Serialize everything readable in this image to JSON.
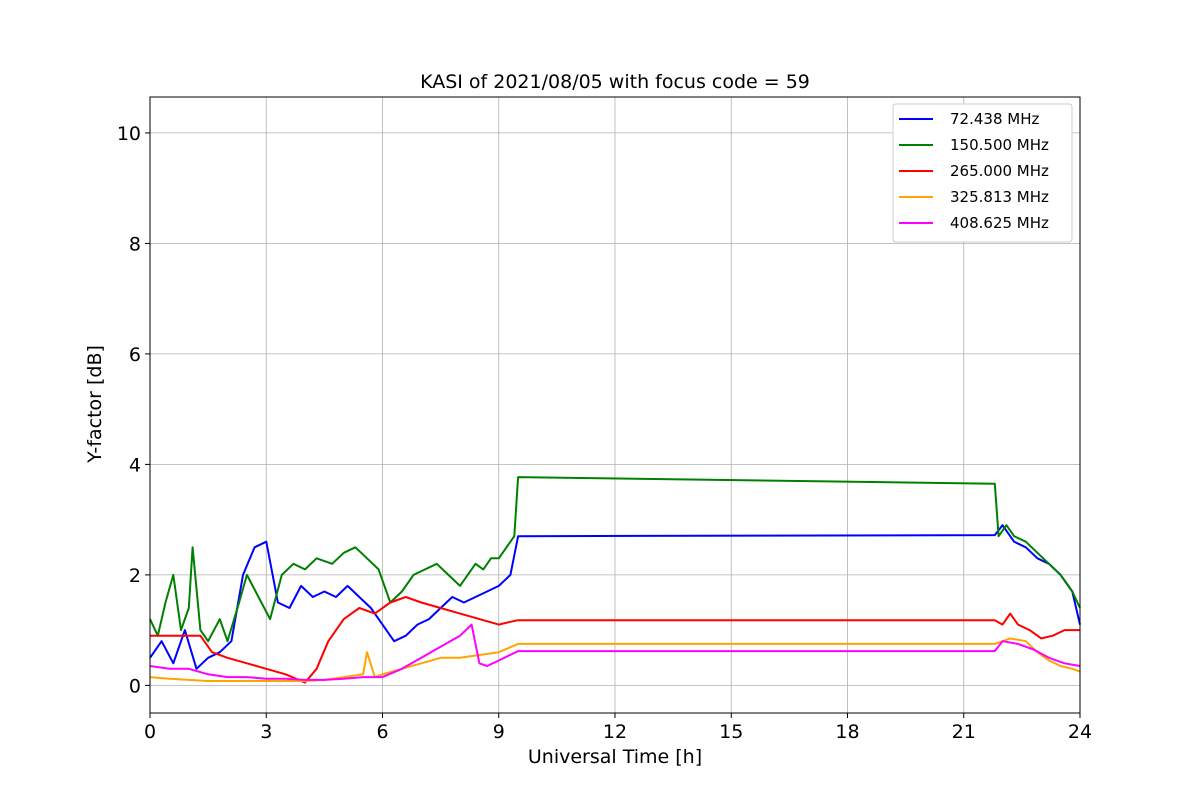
{
  "chart_data": {
    "type": "line",
    "title": "KASI of 2021/08/05 with focus code = 59",
    "xlabel": "Universal Time [h]",
    "ylabel": "Y-factor [dB]",
    "xlim": [
      0,
      24
    ],
    "ylim": [
      -0.5,
      10.65
    ],
    "xticks": [
      0,
      3,
      6,
      9,
      12,
      15,
      18,
      21,
      24
    ],
    "xtick_labels": [
      "0",
      "3",
      "6",
      "9",
      "12",
      "15",
      "18",
      "21",
      "24"
    ],
    "yticks": [
      0,
      2,
      4,
      6,
      8,
      10
    ],
    "ytick_labels": [
      "0",
      "2",
      "4",
      "6",
      "8",
      "10"
    ],
    "grid": true,
    "legend_position": "top-right",
    "series": [
      {
        "name": "72.438 MHz",
        "color": "#0000ff",
        "x": [
          0,
          0.3,
          0.6,
          0.9,
          1.2,
          1.5,
          1.8,
          2.1,
          2.4,
          2.7,
          3.0,
          3.3,
          3.6,
          3.9,
          4.2,
          4.5,
          4.8,
          5.1,
          5.4,
          5.7,
          6.0,
          6.3,
          6.6,
          6.9,
          7.2,
          7.5,
          7.8,
          8.1,
          8.4,
          8.7,
          9.0,
          9.3,
          9.5,
          21.8,
          22.0,
          22.3,
          22.6,
          22.9,
          23.2,
          23.5,
          23.8,
          24.0
        ],
        "y": [
          0.5,
          0.8,
          0.4,
          1.0,
          0.3,
          0.5,
          0.6,
          0.8,
          2.0,
          2.5,
          2.6,
          1.5,
          1.4,
          1.8,
          1.6,
          1.7,
          1.6,
          1.8,
          1.6,
          1.4,
          1.1,
          0.8,
          0.9,
          1.1,
          1.2,
          1.4,
          1.6,
          1.5,
          1.6,
          1.7,
          1.8,
          2.0,
          2.7,
          2.72,
          2.9,
          2.6,
          2.5,
          2.3,
          2.2,
          2.0,
          1.7,
          1.1
        ]
      },
      {
        "name": "150.500 MHz",
        "color": "#008000",
        "x": [
          0,
          0.2,
          0.4,
          0.6,
          0.8,
          1.0,
          1.1,
          1.3,
          1.5,
          1.8,
          2.0,
          2.3,
          2.5,
          2.8,
          3.1,
          3.4,
          3.7,
          4.0,
          4.3,
          4.7,
          5.0,
          5.3,
          5.6,
          5.9,
          6.2,
          6.5,
          6.8,
          7.1,
          7.4,
          7.7,
          8.0,
          8.2,
          8.4,
          8.6,
          8.8,
          9.0,
          9.2,
          9.4,
          9.5,
          21.8,
          21.9,
          22.1,
          22.3,
          22.6,
          22.9,
          23.2,
          23.5,
          23.8,
          24.0
        ],
        "y": [
          1.2,
          0.9,
          1.5,
          2.0,
          1.0,
          1.4,
          2.5,
          1.0,
          0.8,
          1.2,
          0.8,
          1.5,
          2.0,
          1.6,
          1.2,
          2.0,
          2.2,
          2.1,
          2.3,
          2.2,
          2.4,
          2.5,
          2.3,
          2.1,
          1.5,
          1.7,
          2.0,
          2.1,
          2.2,
          2.0,
          1.8,
          2.0,
          2.2,
          2.1,
          2.3,
          2.3,
          2.5,
          2.7,
          3.77,
          3.65,
          2.7,
          2.9,
          2.7,
          2.6,
          2.4,
          2.2,
          2.0,
          1.7,
          1.4
        ]
      },
      {
        "name": "265.000 MHz",
        "color": "#ff0000",
        "x": [
          0,
          0.5,
          1.0,
          1.3,
          1.6,
          2.0,
          2.5,
          3.0,
          3.5,
          4.0,
          4.3,
          4.6,
          5.0,
          5.4,
          5.8,
          6.2,
          6.6,
          7.0,
          7.5,
          8.0,
          8.5,
          9.0,
          9.3,
          9.5,
          21.8,
          22.0,
          22.2,
          22.4,
          22.7,
          23.0,
          23.3,
          23.6,
          24.0
        ],
        "y": [
          0.9,
          0.9,
          0.9,
          0.9,
          0.6,
          0.5,
          0.4,
          0.3,
          0.2,
          0.05,
          0.3,
          0.8,
          1.2,
          1.4,
          1.3,
          1.5,
          1.6,
          1.5,
          1.4,
          1.3,
          1.2,
          1.1,
          1.15,
          1.18,
          1.18,
          1.1,
          1.3,
          1.1,
          1.0,
          0.85,
          0.9,
          1.0,
          1.0
        ]
      },
      {
        "name": "325.813 MHz",
        "color": "#ffa500",
        "x": [
          0,
          0.5,
          1.0,
          1.5,
          2.0,
          2.5,
          3.0,
          3.5,
          4.0,
          4.5,
          5.0,
          5.5,
          5.6,
          5.8,
          6.0,
          6.5,
          7.0,
          7.5,
          8.0,
          8.5,
          9.0,
          9.5,
          21.8,
          22.2,
          22.6,
          22.9,
          23.2,
          23.5,
          23.8,
          24.0
        ],
        "y": [
          0.15,
          0.12,
          0.1,
          0.08,
          0.08,
          0.08,
          0.08,
          0.08,
          0.08,
          0.1,
          0.15,
          0.2,
          0.6,
          0.15,
          0.2,
          0.3,
          0.4,
          0.5,
          0.5,
          0.55,
          0.6,
          0.75,
          0.75,
          0.85,
          0.8,
          0.6,
          0.45,
          0.35,
          0.3,
          0.25
        ]
      },
      {
        "name": "408.625 MHz",
        "color": "#ff00ff",
        "x": [
          0,
          0.5,
          1.0,
          1.5,
          2.0,
          2.5,
          3.0,
          3.5,
          4.0,
          4.5,
          5.0,
          5.5,
          6.0,
          6.5,
          7.0,
          7.5,
          8.0,
          8.3,
          8.5,
          8.7,
          9.0,
          9.5,
          21.8,
          22.0,
          22.4,
          22.8,
          23.2,
          23.6,
          24.0
        ],
        "y": [
          0.35,
          0.3,
          0.3,
          0.2,
          0.15,
          0.15,
          0.12,
          0.12,
          0.1,
          0.1,
          0.12,
          0.15,
          0.15,
          0.3,
          0.5,
          0.7,
          0.9,
          1.1,
          0.4,
          0.35,
          0.45,
          0.62,
          0.62,
          0.8,
          0.75,
          0.65,
          0.5,
          0.4,
          0.35
        ]
      }
    ]
  }
}
